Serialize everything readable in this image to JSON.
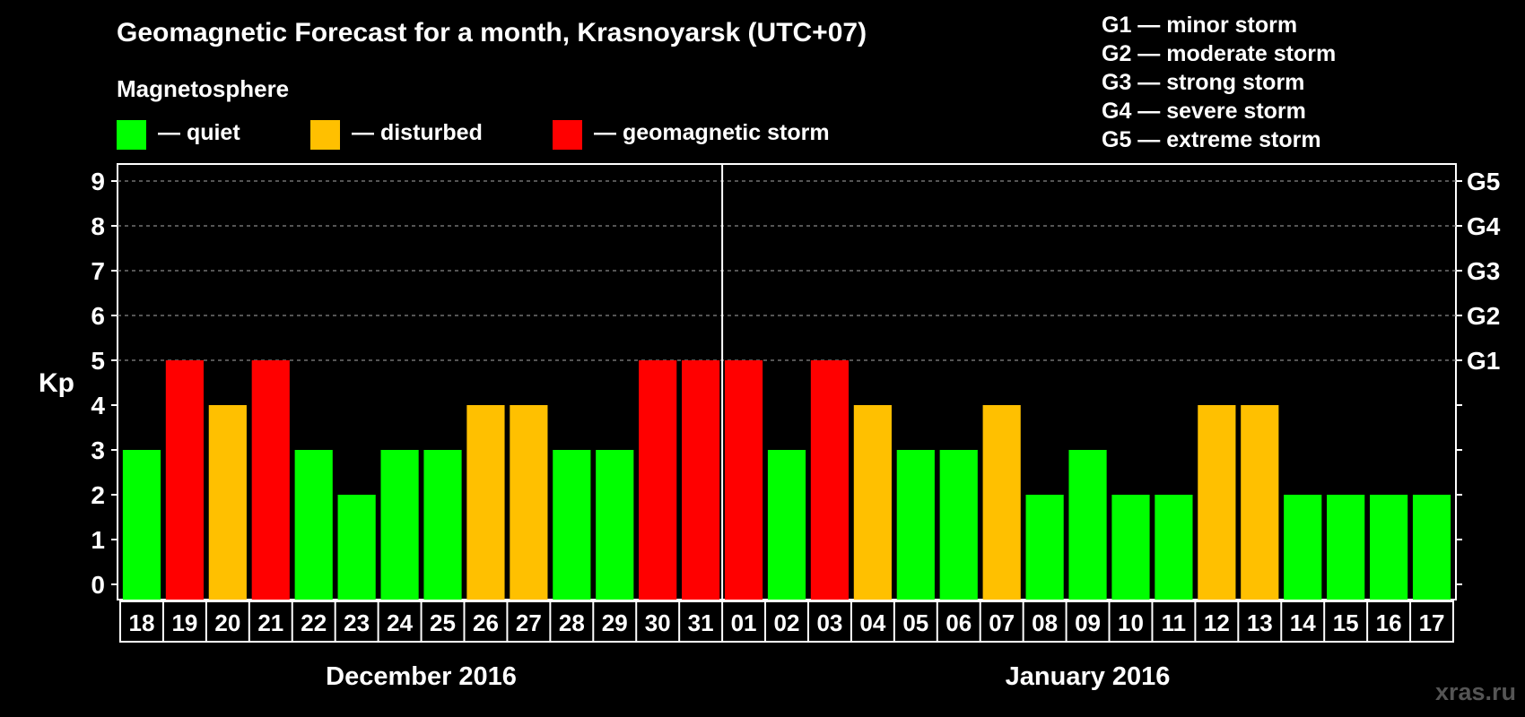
{
  "title": "Geomagnetic Forecast for a month, Krasnoyarsk (UTC+07)",
  "subtitle": "Magnetosphere",
  "legend": [
    {
      "label": "— quiet",
      "color": "#00ff00"
    },
    {
      "label": "— disturbed",
      "color": "#ffc000"
    },
    {
      "label": "— geomagnetic storm",
      "color": "#ff0000"
    }
  ],
  "storm_scale": [
    "G1 — minor storm",
    "G2 — moderate storm",
    "G3 — strong storm",
    "G4 — severe storm",
    "G5 — extreme storm"
  ],
  "watermark": "xras.ru",
  "colors": {
    "quiet": "#00ff00",
    "disturbed": "#ffc000",
    "storm": "#ff0000",
    "grid": "#888888"
  },
  "chart_data": {
    "type": "bar",
    "ylabel": "Kp",
    "ylim": [
      0,
      9
    ],
    "yticks": [
      0,
      1,
      2,
      3,
      4,
      5,
      6,
      7,
      8,
      9
    ],
    "right_ticks": [
      {
        "value": 5,
        "label": "G1"
      },
      {
        "value": 6,
        "label": "G2"
      },
      {
        "value": 7,
        "label": "G3"
      },
      {
        "value": 8,
        "label": "G4"
      },
      {
        "value": 9,
        "label": "G5"
      }
    ],
    "grid": "dashed horizontal at Kp 5–9",
    "categories": [
      "18",
      "19",
      "20",
      "21",
      "22",
      "23",
      "24",
      "25",
      "26",
      "27",
      "28",
      "29",
      "30",
      "31",
      "01",
      "02",
      "03",
      "04",
      "05",
      "06",
      "07",
      "08",
      "09",
      "10",
      "11",
      "12",
      "13",
      "14",
      "15",
      "16",
      "17"
    ],
    "values": [
      3,
      5,
      4,
      5,
      3,
      2,
      3,
      3,
      4,
      4,
      3,
      3,
      5,
      5,
      5,
      3,
      5,
      4,
      3,
      3,
      4,
      2,
      3,
      2,
      2,
      4,
      4,
      2,
      2,
      2,
      2
    ],
    "levels": [
      "quiet",
      "storm",
      "disturbed",
      "storm",
      "quiet",
      "quiet",
      "quiet",
      "quiet",
      "disturbed",
      "disturbed",
      "quiet",
      "quiet",
      "storm",
      "storm",
      "storm",
      "quiet",
      "storm",
      "disturbed",
      "quiet",
      "quiet",
      "disturbed",
      "quiet",
      "quiet",
      "quiet",
      "quiet",
      "disturbed",
      "disturbed",
      "quiet",
      "quiet",
      "quiet",
      "quiet"
    ],
    "month_groups": [
      {
        "label": "December 2016",
        "count": 14
      },
      {
        "label": "January 2016",
        "count": 17
      }
    ]
  }
}
